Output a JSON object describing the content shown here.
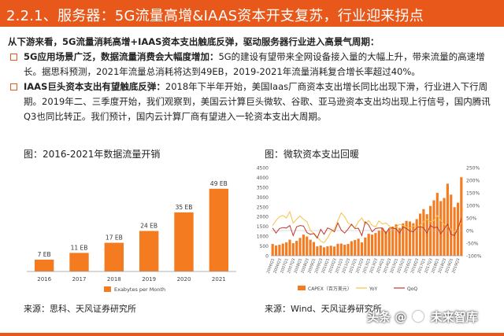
{
  "header": {
    "title": "2.2.1、服务器：5G流量高增&IAAS资本开支复苏，行业迎来拐点"
  },
  "intro": "从下游来看，5G流量消耗高增+IAAS资本支出触底反弹，驱动服务器行业进入高景气周期：",
  "bullets": [
    {
      "lead": "5G应用场景广泛，数据流量消费会大幅度增加：",
      "text": "5G的建设有望带来全网设备接入量的大幅上升，带来流量的高速增长。据思科预测，2021年流量总消耗将达到49EB，2019-2021年流量消耗复合增长率超过40%。"
    },
    {
      "lead": "IAAS巨头资本支出有望触底反弹：",
      "text": "2018年下半年开始，美国Iaas厂商资本支出增长同比出现下滑，行业进入下行周期。2019年二、三季度开始，我们观察到，美国云计算巨头微软、谷歌、亚马逊资本支出均出现上行信号，国内腾讯Q3也同比转正。我们预计，国内云计算厂商有望进入一轮资本支出大周期。"
    }
  ],
  "figures": {
    "left_title": "图：2016-2021年数据流量开销",
    "right_title": "图：微软资本支出回暖",
    "left_source": "来源：思科、天风证券研究所",
    "right_source": "来源：Wind、天风证券研究所"
  },
  "watermark": {
    "prefix": "头条",
    "at": "@",
    "brand": "未来智库"
  },
  "colors": {
    "accent": "#e8581a",
    "bar": "#f47b20",
    "line_yoy": "#f6c243",
    "line_qoq": "#c0392b"
  },
  "chart_data": [
    {
      "type": "bar",
      "categories": [
        "2016",
        "2017",
        "2018",
        "2019",
        "2020",
        "2021"
      ],
      "values": [
        7,
        11,
        17,
        24,
        35,
        49
      ],
      "data_labels": [
        "7 EB",
        "11 EB",
        "17 EB",
        "24 EB",
        "35 EB",
        "49 EB"
      ],
      "series": [
        {
          "name": "Exabytes per Month",
          "values": [
            7,
            11,
            17,
            24,
            35,
            49
          ]
        }
      ],
      "ylim": [
        0,
        55
      ],
      "grid": false,
      "legend": "bottom"
    },
    {
      "type": "bar",
      "y_ticks": [
        "0",
        "500",
        "1000",
        "1500",
        "2000",
        "2500",
        "3000",
        "3500",
        "4000",
        "4500"
      ],
      "y2_ticks": [
        "-100%",
        "-50%",
        "0%",
        "50%",
        "100%",
        "150%",
        "200%",
        "250%"
      ],
      "x_ticks": [
        "2006Q1",
        "2006Q3",
        "2007Q1",
        "2007Q3",
        "2008Q1",
        "2008Q3",
        "2009Q1",
        "2009Q3",
        "2010Q1",
        "2010Q3",
        "2011Q1",
        "2011Q3",
        "2012Q1",
        "2012Q3",
        "2013Q1",
        "2013Q3",
        "2014Q1",
        "2014Q3",
        "2015Q1",
        "2015Q3",
        "2016Q1",
        "2016Q3",
        "2017Q1",
        "2017Q3",
        "2018Q1",
        "2018Q3",
        "2019Q1",
        "2019Q3"
      ],
      "ylim": [
        0,
        4500
      ],
      "y2lim": [
        -100,
        250
      ],
      "series": [
        {
          "name": "CAPEX（百万美元）",
          "type": "bar",
          "values": [
            600,
            520,
            560,
            620,
            680,
            820,
            640,
            760,
            910,
            1080,
            980,
            820,
            700,
            480,
            520,
            430,
            480,
            510,
            470,
            610,
            620,
            560,
            600,
            740,
            800,
            870,
            680,
            930,
            1120,
            1080,
            1160,
            1280,
            1410,
            1250,
            1370,
            1490,
            1600,
            1420,
            1650,
            1780,
            1750,
            1660,
            1870,
            2150,
            2380,
            2120,
            2540,
            2830,
            3210,
            2790,
            2950,
            3680,
            3120,
            2480,
            2710,
            4010
          ]
        },
        {
          "name": "YoY",
          "type": "line",
          "values": [
            20,
            40,
            55,
            60,
            50,
            75,
            30,
            45,
            58,
            45,
            35,
            0,
            -10,
            -25,
            -42,
            -48,
            -30,
            -5,
            5,
            40,
            70,
            55,
            30,
            22,
            10,
            35,
            50,
            25,
            40,
            20,
            15,
            38,
            26,
            30,
            18,
            5,
            14,
            25,
            20,
            15,
            10,
            18,
            12,
            20,
            35,
            45,
            35,
            40,
            60,
            40,
            25,
            15,
            5,
            -5,
            10,
            30
          ]
        },
        {
          "name": "QoQ",
          "type": "line",
          "values": [
            10,
            -10,
            8,
            12,
            10,
            20,
            -20,
            15,
            20,
            18,
            -8,
            -15,
            -12,
            -30,
            5,
            -15,
            10,
            5,
            -5,
            30,
            2,
            -10,
            6,
            25,
            8,
            9,
            -20,
            35,
            22,
            -5,
            8,
            10,
            10,
            -12,
            10,
            9,
            7,
            -10,
            15,
            8,
            -2,
            -5,
            12,
            15,
            11,
            -10,
            20,
            11,
            14,
            -13,
            6,
            25,
            -15,
            -20,
            9,
            48
          ]
        }
      ],
      "grid": false,
      "legend": "bottom"
    }
  ]
}
